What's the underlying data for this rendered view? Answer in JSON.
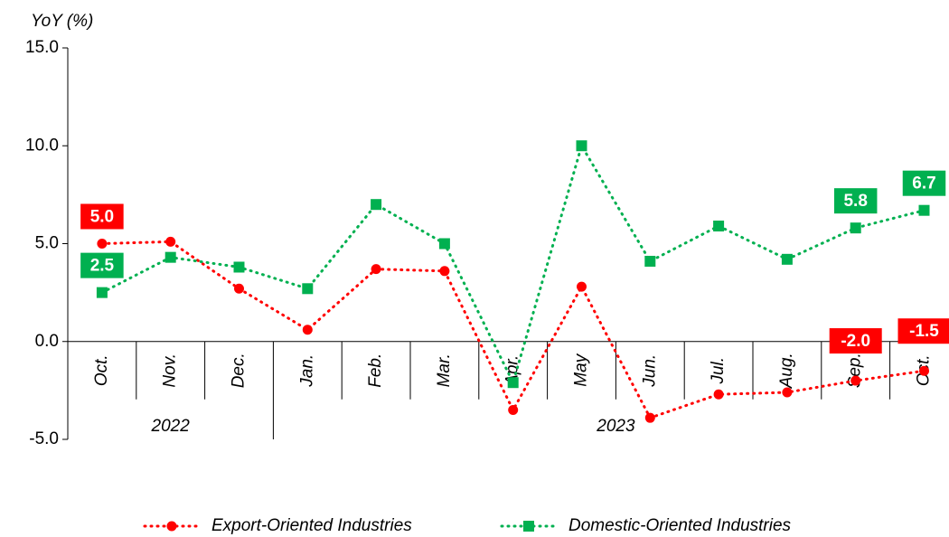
{
  "chart_data": {
    "type": "line",
    "y_axis_label": "YoY (%)",
    "categories": [
      "Oct.",
      "Nov.",
      "Dec.",
      "Jan.",
      "Feb.",
      "Mar.",
      "Apr.",
      "May",
      "Jun.",
      "Jul.",
      "Aug.",
      "Sep.",
      "Oct."
    ],
    "x_groups": [
      {
        "label": "2022",
        "from": 0,
        "to": 2
      },
      {
        "label": "2023",
        "from": 3,
        "to": 12
      }
    ],
    "ylim": [
      -5,
      15
    ],
    "yticks": [
      {
        "value": -5,
        "label": "-5.0"
      },
      {
        "value": 0,
        "label": "0.0"
      },
      {
        "value": 5,
        "label": "5.0"
      },
      {
        "value": 10,
        "label": "10.0"
      },
      {
        "value": 15,
        "label": "15.0"
      }
    ],
    "legend": "bottom",
    "series": [
      {
        "name": "Export-Oriented Industries",
        "color": "#ff0000",
        "marker": "circle",
        "values": [
          5.0,
          5.1,
          2.7,
          0.6,
          3.7,
          3.6,
          -3.5,
          2.8,
          -3.9,
          -2.7,
          -2.6,
          -2.0,
          -1.5
        ],
        "value_labels": [
          "5.0",
          null,
          null,
          null,
          null,
          null,
          null,
          null,
          null,
          null,
          null,
          "-2.0",
          "-1.5"
        ]
      },
      {
        "name": "Domestic-Oriented Industries",
        "color": "#00b050",
        "marker": "square",
        "values": [
          2.5,
          4.3,
          3.8,
          2.7,
          7.0,
          5.0,
          -2.1,
          10.0,
          4.1,
          5.9,
          4.2,
          5.8,
          6.7
        ],
        "value_labels": [
          "2.5",
          null,
          null,
          null,
          null,
          null,
          null,
          null,
          null,
          null,
          null,
          "5.8",
          "6.7"
        ]
      }
    ]
  }
}
